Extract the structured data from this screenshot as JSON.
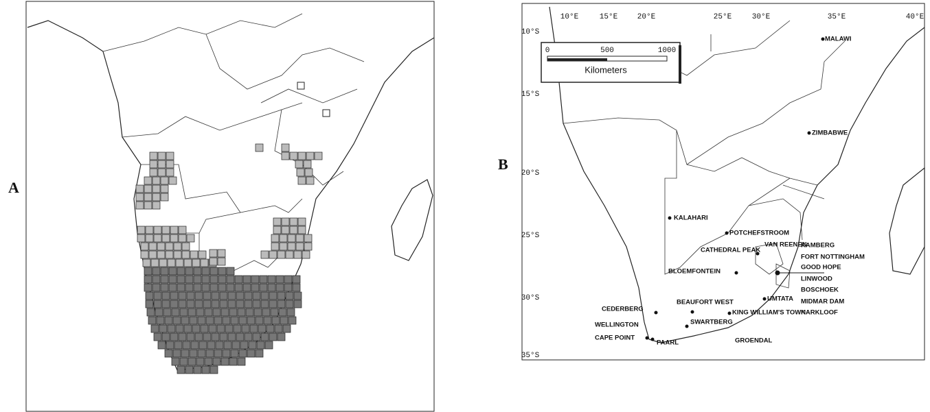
{
  "panel_a": {
    "label": "A"
  },
  "panel_b": {
    "label": "B",
    "lon_labels": [
      "10°E",
      "15°E",
      "20°E",
      "25°E",
      "30°E",
      "35°E",
      "40°E"
    ],
    "lat_labels": [
      "10°S",
      "15°S",
      "20°S",
      "25°S",
      "30°S",
      "35°S"
    ],
    "scale_bar": {
      "ticks": [
        "0",
        "500",
        "1000"
      ],
      "unit": "Kilometers"
    },
    "places": [
      "MALAWI",
      "ZIMBABWE",
      "KALAHARI",
      "POTCHEFSTROOM",
      "CATHEDRAL PEAK",
      "VAN REENEN",
      "KAMBERG",
      "FORT NOTTINGHAM",
      "GOOD HOPE",
      "LINWOOD",
      "BOSCHOEK",
      "MIDMAR DAM",
      "KARKLOOF",
      "BLOEMFONTEIN",
      "UMTATA",
      "BEAUFORT WEST",
      "CEDERBERG",
      "KING WILLIAM'S TOWN",
      "SWARTBERG",
      "WELLINGTON",
      "CAPE POINT",
      "PAARL",
      "GROENDAL"
    ]
  }
}
